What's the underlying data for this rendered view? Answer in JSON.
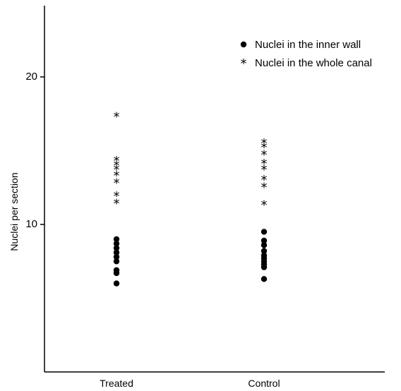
{
  "chart_data": {
    "type": "scatter",
    "title": "",
    "xlabel": "",
    "ylabel": "Nuclei per section",
    "categories": [
      "Treated",
      "Control"
    ],
    "ylim": [
      0,
      24.5
    ],
    "yticks": [
      10,
      20
    ],
    "legend_position": "top-right",
    "grid": false,
    "series": [
      {
        "name": "Nuclei in the inner wall",
        "marker": "dot",
        "points": {
          "Treated": [
            9.0,
            8.7,
            8.4,
            8.1,
            7.8,
            7.5,
            6.9,
            6.7,
            6.0
          ],
          "Control": [
            9.5,
            8.9,
            8.6,
            8.2,
            7.9,
            7.7,
            7.5,
            7.3,
            7.1,
            6.3
          ]
        }
      },
      {
        "name": "Nuclei in the whole canal",
        "marker": "star",
        "points": {
          "Treated": [
            17.4,
            14.4,
            14.1,
            13.8,
            13.4,
            12.9,
            12.0,
            11.5
          ],
          "Control": [
            15.6,
            15.3,
            14.8,
            14.2,
            13.8,
            13.1,
            12.6,
            11.4
          ]
        }
      }
    ]
  }
}
